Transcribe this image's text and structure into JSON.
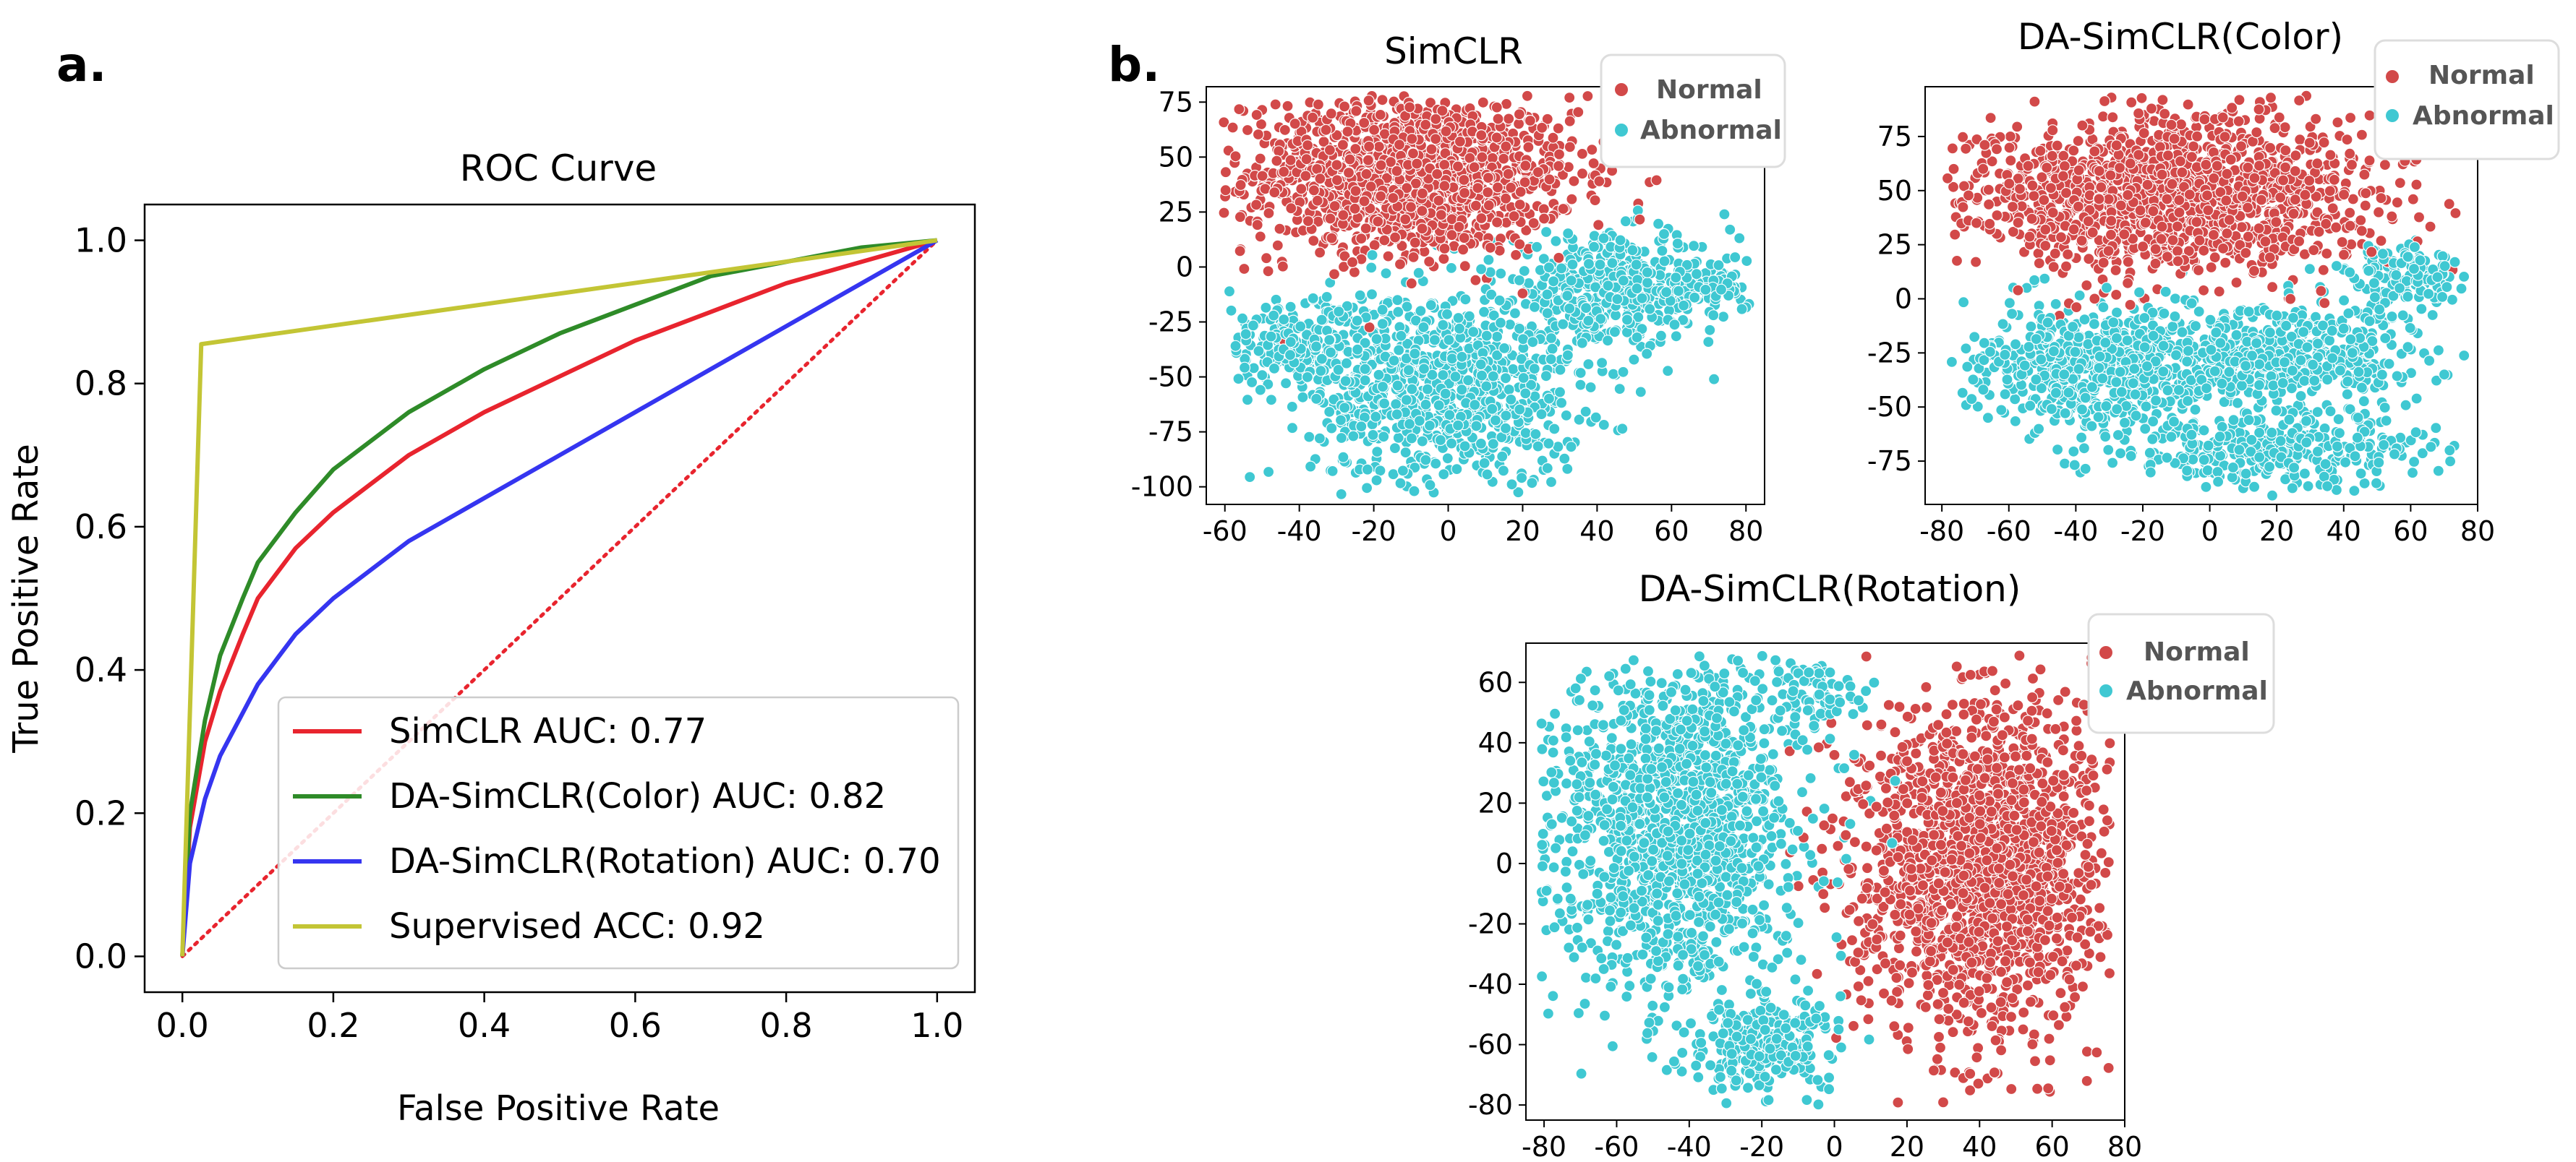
{
  "colors": {
    "simclr": "#e8242e",
    "color": "#2e8b28",
    "rotation": "#3535f0",
    "supervised": "#c3c535",
    "diagonal": "#e8242e",
    "normal": "#d24949",
    "abnormal": "#3fc8d2"
  },
  "chart_data": [
    {
      "type": "line",
      "panel_label": "a.",
      "title": "ROC Curve",
      "xlabel": "False Positive Rate",
      "ylabel": "True Positive Rate",
      "xlim": [
        -0.05,
        1.05
      ],
      "ylim": [
        -0.05,
        1.05
      ],
      "xticks": [
        "0.0",
        "0.2",
        "0.4",
        "0.6",
        "0.8",
        "1.0"
      ],
      "yticks": [
        "0.0",
        "0.2",
        "0.4",
        "0.6",
        "0.8",
        "1.0"
      ],
      "legend_position": "lower-right",
      "series": [
        {
          "name": "SimCLR AUC: 0.77",
          "color": "#e8242e",
          "x": [
            0,
            0.01,
            0.03,
            0.05,
            0.08,
            0.1,
            0.15,
            0.2,
            0.3,
            0.4,
            0.5,
            0.6,
            0.7,
            0.8,
            0.9,
            1.0
          ],
          "y": [
            0,
            0.18,
            0.3,
            0.37,
            0.45,
            0.5,
            0.57,
            0.62,
            0.7,
            0.76,
            0.81,
            0.86,
            0.9,
            0.94,
            0.97,
            1.0
          ]
        },
        {
          "name": "DA-SimCLR(Color) AUC: 0.82",
          "color": "#2e8b28",
          "x": [
            0,
            0.01,
            0.03,
            0.05,
            0.08,
            0.1,
            0.15,
            0.2,
            0.3,
            0.4,
            0.5,
            0.6,
            0.7,
            0.8,
            0.9,
            1.0
          ],
          "y": [
            0,
            0.2,
            0.33,
            0.42,
            0.5,
            0.55,
            0.62,
            0.68,
            0.76,
            0.82,
            0.87,
            0.91,
            0.95,
            0.97,
            0.99,
            1.0
          ]
        },
        {
          "name": "DA-SimCLR(Rotation) AUC: 0.70",
          "color": "#3535f0",
          "x": [
            0,
            0.01,
            0.03,
            0.05,
            0.08,
            0.1,
            0.15,
            0.2,
            0.3,
            0.4,
            0.5,
            0.6,
            0.7,
            0.8,
            0.9,
            1.0
          ],
          "y": [
            0,
            0.13,
            0.22,
            0.28,
            0.34,
            0.38,
            0.45,
            0.5,
            0.58,
            0.64,
            0.7,
            0.76,
            0.82,
            0.88,
            0.94,
            1.0
          ]
        },
        {
          "name": "Supervised ACC: 0.92",
          "color": "#c3c535",
          "x": [
            0,
            0.025,
            1.0
          ],
          "y": [
            0,
            0.855,
            1.0
          ]
        }
      ],
      "diagonal": {
        "x": [
          0,
          1
        ],
        "y": [
          0,
          1
        ],
        "style": "dotted"
      }
    },
    {
      "type": "scatter",
      "panel_label": "b.",
      "title": "SimCLR",
      "xlim": [
        -65,
        85
      ],
      "ylim": [
        -108,
        82
      ],
      "xticks": [
        -60,
        -40,
        -20,
        0,
        20,
        40,
        60,
        80
      ],
      "yticks": [
        75,
        50,
        25,
        0,
        -25,
        -50,
        -75,
        -100
      ],
      "legend": [
        "Normal",
        "Abnormal"
      ],
      "legend_position": "top-right",
      "clusters": [
        {
          "label": "Normal",
          "center": [
            -10,
            42
          ],
          "spread": [
            22,
            18
          ],
          "count": 1400
        },
        {
          "label": "Abnormal",
          "center": [
            0,
            -55
          ],
          "spread": [
            18,
            22
          ],
          "count": 900
        },
        {
          "label": "Abnormal",
          "center": [
            -40,
            -35
          ],
          "spread": [
            12,
            10
          ],
          "count": 250
        },
        {
          "label": "Abnormal",
          "center": [
            45,
            -10
          ],
          "spread": [
            16,
            12
          ],
          "count": 450
        },
        {
          "label": "Abnormal",
          "center": [
            68,
            -10
          ],
          "spread": [
            6,
            4
          ],
          "count": 80
        }
      ]
    },
    {
      "type": "scatter",
      "title": "DA-SimCLR(Color)",
      "xlim": [
        -85,
        80
      ],
      "ylim": [
        -95,
        98
      ],
      "xticks": [
        -80,
        -60,
        -40,
        -20,
        0,
        20,
        40,
        60,
        80
      ],
      "yticks": [
        75,
        50,
        25,
        0,
        -25,
        -50,
        -75
      ],
      "legend": [
        "Normal",
        "Abnormal"
      ],
      "legend_position": "top-right",
      "clusters": [
        {
          "label": "Normal",
          "center": [
            -10,
            48
          ],
          "spread": [
            30,
            18
          ],
          "count": 1500
        },
        {
          "label": "Abnormal",
          "center": [
            -30,
            -30
          ],
          "spread": [
            20,
            14
          ],
          "count": 650
        },
        {
          "label": "Abnormal",
          "center": [
            25,
            -25
          ],
          "spread": [
            20,
            12
          ],
          "count": 450
        },
        {
          "label": "Abnormal",
          "center": [
            20,
            -70
          ],
          "spread": [
            25,
            8
          ],
          "count": 350
        },
        {
          "label": "Abnormal",
          "center": [
            60,
            10
          ],
          "spread": [
            10,
            8
          ],
          "count": 150
        }
      ]
    },
    {
      "type": "scatter",
      "title": "DA-SimCLR(Rotation)",
      "xlim": [
        -85,
        80
      ],
      "ylim": [
        -85,
        73
      ],
      "xticks": [
        -80,
        -60,
        -40,
        -20,
        0,
        20,
        40,
        60,
        80
      ],
      "yticks": [
        60,
        40,
        20,
        0,
        -20,
        -40,
        -60,
        -80
      ],
      "legend": [
        "Normal",
        "Abnormal"
      ],
      "legend_position": "top-right",
      "clusters": [
        {
          "label": "Normal",
          "center": [
            40,
            0
          ],
          "spread": [
            18,
            28
          ],
          "count": 1700
        },
        {
          "label": "Abnormal",
          "center": [
            -45,
            10
          ],
          "spread": [
            18,
            28
          ],
          "count": 1400
        },
        {
          "label": "Abnormal",
          "center": [
            -20,
            -60
          ],
          "spread": [
            10,
            8
          ],
          "count": 250
        },
        {
          "label": "Abnormal",
          "center": [
            -5,
            55
          ],
          "spread": [
            6,
            8
          ],
          "count": 80
        }
      ]
    }
  ]
}
